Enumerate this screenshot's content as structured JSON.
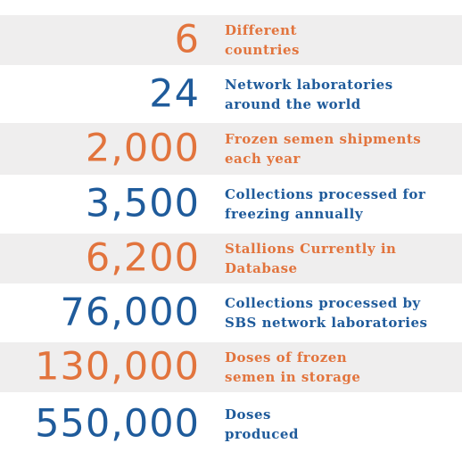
{
  "colors": {
    "orange": "#e2743d",
    "blue": "#1f5b9b",
    "shade": "#efeeee"
  },
  "stats": [
    {
      "number": "6",
      "line1": "Different",
      "line2": "countries",
      "color": "#e2743d"
    },
    {
      "number": "24",
      "line1": "Network laboratories",
      "line2": "around the world",
      "color": "#1f5b9b"
    },
    {
      "number": "2,000",
      "line1": "Frozen semen shipments",
      "line2": "each year",
      "color": "#e2743d"
    },
    {
      "number": "3,500",
      "line1": "Collections processed for",
      "line2": "freezing annually",
      "color": "#1f5b9b"
    },
    {
      "number": "6,200",
      "line1": "Stallions Currently in",
      "line2": "Database",
      "color": "#e2743d"
    },
    {
      "number": "76,000",
      "line1": "Collections processed by",
      "line2": "SBS network laboratories",
      "color": "#1f5b9b"
    },
    {
      "number": "130,000",
      "line1": "Doses of frozen",
      "line2": "semen in storage",
      "color": "#e2743d"
    },
    {
      "number": "550,000",
      "line1": "Doses",
      "line2": "produced",
      "color": "#1f5b9b"
    }
  ]
}
